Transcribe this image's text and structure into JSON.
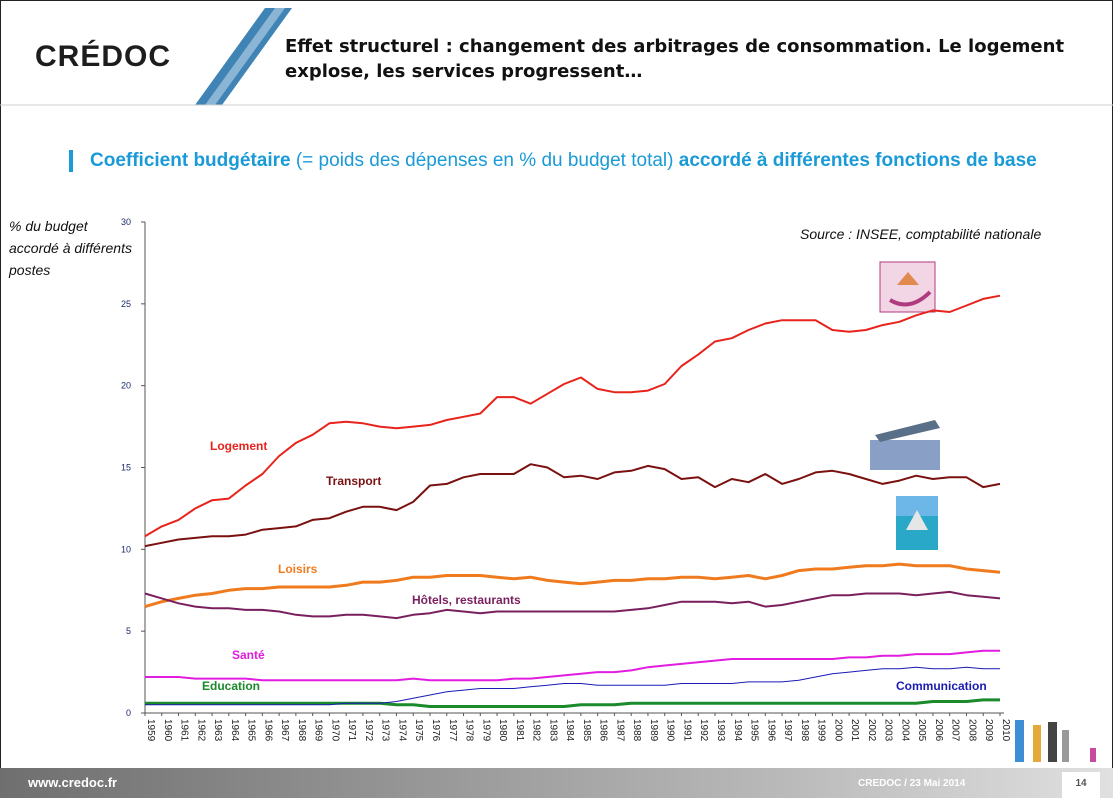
{
  "slide": {
    "logo": "CRÉDOC",
    "title": "Effet structurel : changement des arbitrages de consommation. Le logement explose, les services progressent…",
    "subtitle_bold_1": "Coefficient budgétaire",
    "subtitle_normal": "(= poids des dépenses en % du budget total)",
    "subtitle_bold_2": "accordé à différentes fonctions de base",
    "footer_url": "www.credoc.fr",
    "footer_text": "CREDOC / 23 Mai 2014",
    "page_number": "14"
  },
  "chart_data": {
    "type": "line",
    "y_label": "% du budget accordé à différents postes",
    "source": "Source : INSEE, comptabilité nationale",
    "categories": [
      "1959",
      "1960",
      "1961",
      "1962",
      "1963",
      "1964",
      "1965",
      "1966",
      "1967",
      "1968",
      "1969",
      "1970",
      "1971",
      "1972",
      "1973",
      "1974",
      "1975",
      "1976",
      "1977",
      "1978",
      "1979",
      "1980",
      "1981",
      "1982",
      "1983",
      "1984",
      "1985",
      "1986",
      "1987",
      "1988",
      "1989",
      "1990",
      "1991",
      "1992",
      "1993",
      "1994",
      "1995",
      "1996",
      "1997",
      "1998",
      "1999",
      "2000",
      "2001",
      "2002",
      "2003",
      "2004",
      "2005",
      "2006",
      "2007",
      "2008",
      "2009",
      "2010"
    ],
    "ylim": [
      0,
      30
    ],
    "yticks": [
      0,
      5,
      10,
      15,
      20,
      25,
      30
    ],
    "series": [
      {
        "name": "Logement",
        "color": "#e8231c",
        "values": [
          10.8,
          11.4,
          11.8,
          12.5,
          13.0,
          13.1,
          13.9,
          14.6,
          15.7,
          16.5,
          17.0,
          17.7,
          17.8,
          17.7,
          17.5,
          17.4,
          17.5,
          17.6,
          17.9,
          18.1,
          18.3,
          19.3,
          19.3,
          18.9,
          19.5,
          20.1,
          20.5,
          19.8,
          19.6,
          19.6,
          19.7,
          20.1,
          21.2,
          21.9,
          22.7,
          22.9,
          23.4,
          23.8,
          24.0,
          24.0,
          24.0,
          23.4,
          23.3,
          23.4,
          23.7,
          23.9,
          24.3,
          24.6,
          24.5,
          24.9,
          25.3,
          25.5
        ]
      },
      {
        "name": "Transport",
        "color": "#7a1010",
        "values": [
          10.2,
          10.4,
          10.6,
          10.7,
          10.8,
          10.8,
          10.9,
          11.2,
          11.3,
          11.4,
          11.8,
          11.9,
          12.3,
          12.6,
          12.6,
          12.4,
          12.9,
          13.9,
          14.0,
          14.4,
          14.6,
          14.6,
          14.6,
          15.2,
          15.0,
          14.4,
          14.5,
          14.3,
          14.7,
          14.8,
          15.1,
          14.9,
          14.3,
          14.4,
          13.8,
          14.3,
          14.1,
          14.6,
          14.0,
          14.3,
          14.7,
          14.8,
          14.6,
          14.3,
          14.0,
          14.2,
          14.5,
          14.3,
          14.4,
          14.4,
          13.8,
          14.0
        ]
      },
      {
        "name": "Loisirs",
        "color": "#ef7b1e",
        "values": [
          6.5,
          6.8,
          7.0,
          7.2,
          7.3,
          7.5,
          7.6,
          7.6,
          7.7,
          7.7,
          7.7,
          7.7,
          7.8,
          8.0,
          8.0,
          8.1,
          8.3,
          8.3,
          8.4,
          8.4,
          8.4,
          8.3,
          8.2,
          8.3,
          8.1,
          8.0,
          7.9,
          8.0,
          8.1,
          8.1,
          8.2,
          8.2,
          8.3,
          8.3,
          8.2,
          8.3,
          8.4,
          8.2,
          8.4,
          8.7,
          8.8,
          8.8,
          8.9,
          9.0,
          9.0,
          9.1,
          9.0,
          9.0,
          9.0,
          8.8,
          8.7,
          8.6
        ]
      },
      {
        "name": "Hôtels, restaurants",
        "color": "#7a1f5e",
        "values": [
          7.3,
          7.0,
          6.7,
          6.5,
          6.4,
          6.4,
          6.3,
          6.3,
          6.2,
          6.0,
          5.9,
          5.9,
          6.0,
          6.0,
          5.9,
          5.8,
          6.0,
          6.1,
          6.3,
          6.2,
          6.1,
          6.2,
          6.2,
          6.2,
          6.2,
          6.2,
          6.2,
          6.2,
          6.2,
          6.3,
          6.4,
          6.6,
          6.8,
          6.8,
          6.8,
          6.7,
          6.8,
          6.5,
          6.6,
          6.8,
          7.0,
          7.2,
          7.2,
          7.3,
          7.3,
          7.3,
          7.2,
          7.3,
          7.4,
          7.2,
          7.1,
          7.0
        ]
      },
      {
        "name": "Santé",
        "color": "#e21ce0",
        "values": [
          2.2,
          2.2,
          2.2,
          2.1,
          2.1,
          2.1,
          2.1,
          2.0,
          2.0,
          2.0,
          2.0,
          2.0,
          2.0,
          2.0,
          2.0,
          2.0,
          2.1,
          2.0,
          2.0,
          2.0,
          2.0,
          2.0,
          2.1,
          2.1,
          2.2,
          2.3,
          2.4,
          2.5,
          2.5,
          2.6,
          2.8,
          2.9,
          3.0,
          3.1,
          3.2,
          3.3,
          3.3,
          3.3,
          3.3,
          3.3,
          3.3,
          3.3,
          3.4,
          3.4,
          3.5,
          3.5,
          3.6,
          3.6,
          3.6,
          3.7,
          3.8,
          3.8
        ]
      },
      {
        "name": "Education",
        "color": "#1a8a2a",
        "values": [
          0.6,
          0.6,
          0.6,
          0.6,
          0.6,
          0.6,
          0.6,
          0.6,
          0.6,
          0.6,
          0.6,
          0.6,
          0.6,
          0.6,
          0.6,
          0.5,
          0.5,
          0.4,
          0.4,
          0.4,
          0.4,
          0.4,
          0.4,
          0.4,
          0.4,
          0.4,
          0.5,
          0.5,
          0.5,
          0.6,
          0.6,
          0.6,
          0.6,
          0.6,
          0.6,
          0.6,
          0.6,
          0.6,
          0.6,
          0.6,
          0.6,
          0.6,
          0.6,
          0.6,
          0.6,
          0.6,
          0.6,
          0.7,
          0.7,
          0.7,
          0.8,
          0.8
        ]
      },
      {
        "name": "Communication",
        "color": "#1a1ab5",
        "values": [
          0.5,
          0.5,
          0.5,
          0.5,
          0.5,
          0.5,
          0.5,
          0.5,
          0.5,
          0.5,
          0.5,
          0.5,
          0.6,
          0.6,
          0.6,
          0.7,
          0.9,
          1.1,
          1.3,
          1.4,
          1.5,
          1.5,
          1.5,
          1.6,
          1.7,
          1.8,
          1.8,
          1.7,
          1.7,
          1.7,
          1.7,
          1.7,
          1.8,
          1.8,
          1.8,
          1.8,
          1.9,
          1.9,
          1.9,
          2.0,
          2.2,
          2.4,
          2.5,
          2.6,
          2.7,
          2.7,
          2.8,
          2.7,
          2.7,
          2.8,
          2.7,
          2.7
        ]
      }
    ]
  }
}
